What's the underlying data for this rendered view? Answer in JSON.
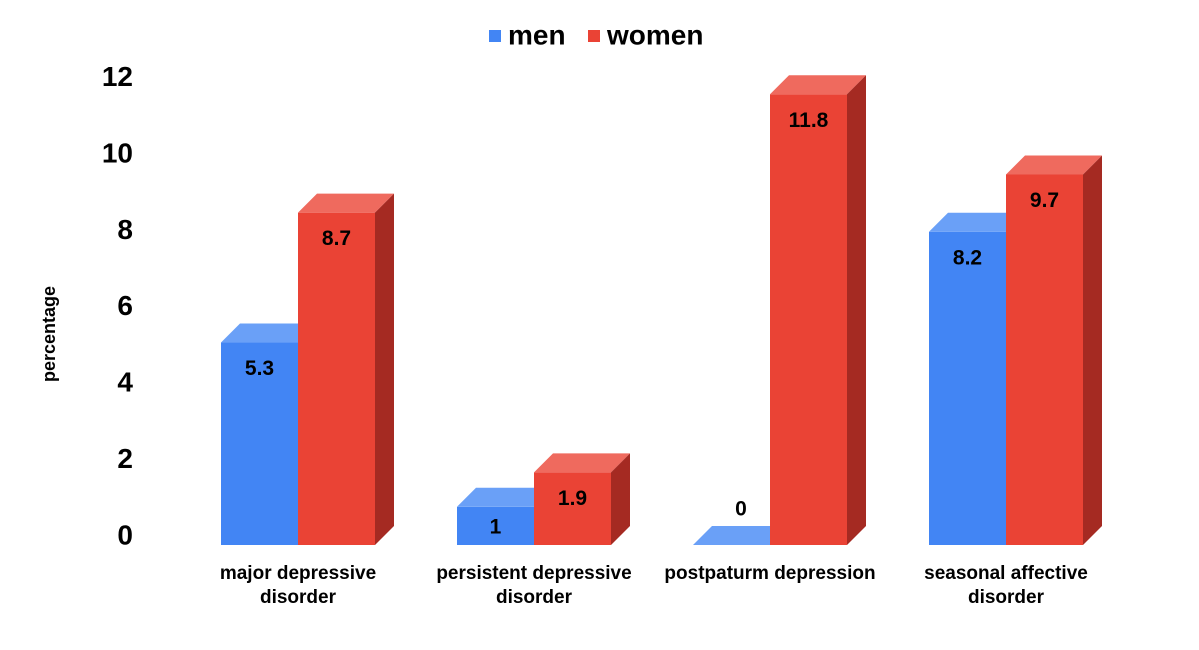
{
  "chart_data": {
    "type": "bar",
    "title": "",
    "xlabel": "",
    "ylabel": "percentage",
    "ylim": [
      0,
      12
    ],
    "yticks": [
      0,
      2,
      4,
      6,
      8,
      10,
      12
    ],
    "grid": false,
    "legend_position": "top-center",
    "style": "3d",
    "categories": [
      [
        "major depressive",
        "disorder"
      ],
      [
        "persistent depressive",
        "disorder"
      ],
      [
        "postpaturm depression"
      ],
      [
        "seasonal affective",
        "disorder"
      ]
    ],
    "series": [
      {
        "name": "men",
        "color": "#4285f4",
        "top_color": "#6aa0f7",
        "side_color": "#2f6fd8",
        "values": [
          5.3,
          1,
          0,
          8.2
        ],
        "labels": [
          "5.3",
          "1",
          "0",
          "8.2"
        ]
      },
      {
        "name": "women",
        "color": "#ea4335",
        "top_color": "#ef6a5e",
        "side_color": "#a52a22",
        "values": [
          8.7,
          1.9,
          11.8,
          9.7
        ],
        "labels": [
          "8.7",
          "1.9",
          "11.8",
          "9.7"
        ]
      }
    ]
  }
}
